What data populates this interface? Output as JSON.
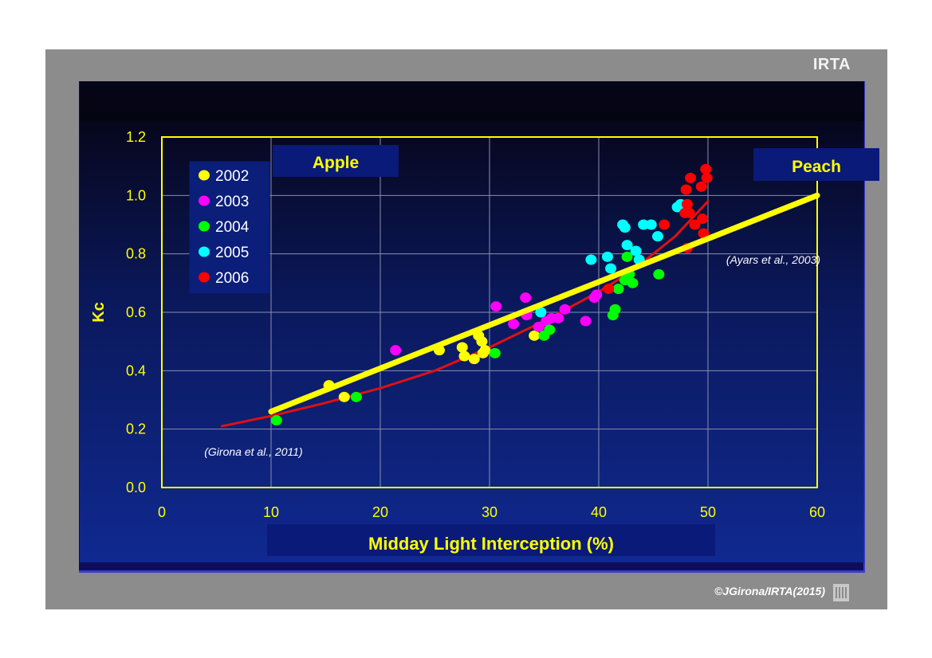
{
  "brand": "IRTA",
  "copyright": "©JGirona/IRTA(2015)",
  "chart_data": {
    "type": "scatter",
    "xlabel": "Midday Light Interception  (%)",
    "ylabel": "Kc",
    "xlim": [
      0,
      60
    ],
    "ylim": [
      0,
      1.2
    ],
    "xticks": [
      "0",
      "10",
      "20",
      "30",
      "40",
      "50",
      "60"
    ],
    "yticks": [
      "0.0",
      "0.2",
      "0.4",
      "0.6",
      "0.8",
      "1.0",
      "1.2"
    ],
    "grid": true,
    "legend_position": "top-left",
    "annotations": {
      "apple": "Apple",
      "peach": "Peach",
      "girona": "(Girona et al., 2011)",
      "ayars": "(Ayars et al., 2003)"
    },
    "series": [
      {
        "name": "2002",
        "color": "#ffff00",
        "points": [
          [
            15.3,
            0.35
          ],
          [
            16.7,
            0.31
          ],
          [
            25.4,
            0.47
          ],
          [
            27.5,
            0.48
          ],
          [
            27.7,
            0.45
          ],
          [
            28.6,
            0.44
          ],
          [
            29.0,
            0.52
          ],
          [
            29.3,
            0.5
          ],
          [
            29.4,
            0.46
          ],
          [
            29.6,
            0.47
          ],
          [
            34.1,
            0.52
          ]
        ]
      },
      {
        "name": "2003",
        "color": "#ff00ff",
        "points": [
          [
            21.4,
            0.47
          ],
          [
            30.6,
            0.62
          ],
          [
            32.2,
            0.56
          ],
          [
            33.3,
            0.65
          ],
          [
            33.4,
            0.59
          ],
          [
            34.5,
            0.55
          ],
          [
            35.2,
            0.57
          ],
          [
            35.7,
            0.58
          ],
          [
            36.3,
            0.58
          ],
          [
            36.9,
            0.61
          ],
          [
            38.8,
            0.57
          ],
          [
            39.6,
            0.65
          ],
          [
            39.8,
            0.66
          ]
        ]
      },
      {
        "name": "2004",
        "color": "#00ff00",
        "points": [
          [
            10.5,
            0.23
          ],
          [
            17.8,
            0.31
          ],
          [
            30.5,
            0.46
          ],
          [
            35.0,
            0.52
          ],
          [
            35.5,
            0.54
          ],
          [
            41.3,
            0.59
          ],
          [
            41.5,
            0.61
          ],
          [
            41.8,
            0.68
          ],
          [
            42.4,
            0.71
          ],
          [
            42.6,
            0.79
          ],
          [
            42.8,
            0.73
          ],
          [
            43.1,
            0.7
          ],
          [
            45.5,
            0.73
          ]
        ]
      },
      {
        "name": "2005",
        "color": "#00ffff",
        "points": [
          [
            34.7,
            0.6
          ],
          [
            39.3,
            0.78
          ],
          [
            40.8,
            0.79
          ],
          [
            41.1,
            0.75
          ],
          [
            42.2,
            0.9
          ],
          [
            42.4,
            0.89
          ],
          [
            42.6,
            0.83
          ],
          [
            43.4,
            0.81
          ],
          [
            43.7,
            0.78
          ],
          [
            44.1,
            0.9
          ],
          [
            44.8,
            0.9
          ],
          [
            45.4,
            0.86
          ],
          [
            47.2,
            0.96
          ],
          [
            47.5,
            0.97
          ]
        ]
      },
      {
        "name": "2006",
        "color": "#ff0000",
        "points": [
          [
            40.9,
            0.68
          ],
          [
            46.0,
            0.9
          ],
          [
            47.9,
            0.94
          ],
          [
            48.0,
            1.02
          ],
          [
            48.1,
            0.97
          ],
          [
            48.1,
            0.82
          ],
          [
            48.3,
            0.94
          ],
          [
            48.4,
            1.06
          ],
          [
            48.8,
            0.9
          ],
          [
            49.4,
            1.03
          ],
          [
            49.5,
            0.92
          ],
          [
            49.6,
            0.87
          ],
          [
            49.8,
            1.09
          ],
          [
            49.9,
            1.06
          ]
        ]
      }
    ],
    "fit_lines": [
      {
        "color": "#ffff00",
        "points": [
          [
            10,
            0.26
          ],
          [
            60,
            1.0
          ]
        ]
      },
      {
        "color": "#e01010",
        "points": [
          [
            5.5,
            0.21
          ],
          [
            10,
            0.245
          ],
          [
            15,
            0.29
          ],
          [
            20,
            0.34
          ],
          [
            25,
            0.4
          ],
          [
            30,
            0.48
          ],
          [
            35,
            0.57
          ],
          [
            40,
            0.67
          ],
          [
            43,
            0.74
          ],
          [
            45,
            0.8
          ],
          [
            47,
            0.86
          ],
          [
            50,
            0.98
          ]
        ]
      }
    ]
  }
}
